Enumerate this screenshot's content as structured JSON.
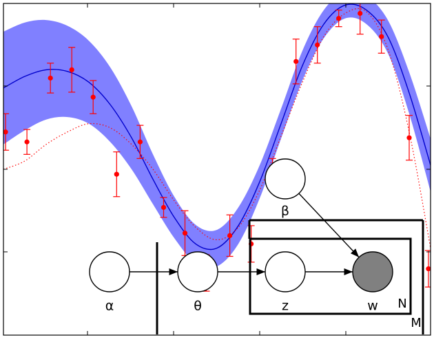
{
  "figure": {
    "colors": {
      "band": "#8080ff",
      "mean_line": "#0000cc",
      "data_points": "#ff0000",
      "true_function": "#ff0000",
      "observed_node": "#808080",
      "plate": "#000000"
    }
  },
  "chart_data": {
    "type": "scatter",
    "title": "",
    "xlabel": "",
    "ylabel": "",
    "grid": false,
    "tick_labels_shown": false,
    "xlim": [
      0,
      10
    ],
    "ylim": [
      -2,
      2
    ],
    "x": [
      0.05,
      0.55,
      1.1,
      1.6,
      2.1,
      2.65,
      3.2,
      3.75,
      4.25,
      4.75,
      5.3,
      5.8,
      6.3,
      6.85,
      7.35,
      7.85,
      8.35,
      8.85,
      9.5,
      9.95
    ],
    "y": [
      0.45,
      0.33,
      1.1,
      1.2,
      0.87,
      -0.06,
      0.33,
      -0.46,
      -0.77,
      -1.25,
      -0.8,
      -0.9,
      0.03,
      1.3,
      1.5,
      1.82,
      1.88,
      1.6,
      0.38,
      -1.2
    ],
    "error": [
      0.22,
      0.15,
      0.18,
      0.27,
      0.2,
      0.27,
      0.2,
      0.12,
      0.27,
      0.22,
      0.25,
      0.22,
      0.1,
      0.27,
      0.22,
      0.1,
      0.25,
      0.2,
      0.27,
      0.22
    ],
    "mean_curve": {
      "x": [
        0,
        0.5,
        1,
        1.5,
        2,
        2.5,
        3,
        3.5,
        4,
        4.5,
        5,
        5.5,
        6,
        6.5,
        7,
        7.5,
        8,
        8.5,
        9,
        9.5,
        10
      ],
      "y": [
        0.98,
        1.12,
        1.2,
        1.18,
        1.05,
        0.78,
        0.38,
        -0.12,
        -0.58,
        -0.9,
        -0.95,
        -0.68,
        -0.15,
        0.55,
        1.25,
        1.75,
        1.98,
        1.92,
        1.6,
        0.92,
        0.05
      ]
    },
    "band_halfwidth": [
      0.68,
      0.65,
      0.6,
      0.55,
      0.5,
      0.45,
      0.38,
      0.3,
      0.25,
      0.23,
      0.22,
      0.22,
      0.2,
      0.18,
      0.18,
      0.17,
      0.16,
      0.17,
      0.2,
      0.25,
      0.32
    ],
    "true_function": {
      "x": [
        0,
        0.5,
        1,
        1.5,
        2,
        2.5,
        3,
        3.5,
        4,
        4.5,
        5,
        5.5,
        6,
        6.5,
        7,
        7.5,
        8,
        8.5,
        9,
        9.5,
        10
      ],
      "y": [
        0.0,
        0.1,
        0.3,
        0.45,
        0.55,
        0.5,
        0.3,
        0.0,
        -0.38,
        -0.7,
        -0.85,
        -0.7,
        -0.25,
        0.4,
        1.05,
        1.6,
        1.88,
        1.9,
        1.45,
        0.45,
        -0.95
      ]
    }
  },
  "diagram": {
    "nodes": [
      {
        "id": "alpha",
        "label": "α",
        "observed": false
      },
      {
        "id": "theta",
        "label": "θ",
        "observed": false
      },
      {
        "id": "z",
        "label": "z",
        "observed": false
      },
      {
        "id": "w",
        "label": "w",
        "observed": true
      },
      {
        "id": "beta",
        "label": "β",
        "observed": false
      }
    ],
    "edges": [
      {
        "from": "alpha",
        "to": "theta"
      },
      {
        "from": "theta",
        "to": "z"
      },
      {
        "from": "z",
        "to": "w"
      },
      {
        "from": "beta",
        "to": "w"
      }
    ],
    "plates": [
      {
        "id": "outer",
        "label": "M"
      },
      {
        "id": "inner",
        "label": "N"
      }
    ]
  }
}
